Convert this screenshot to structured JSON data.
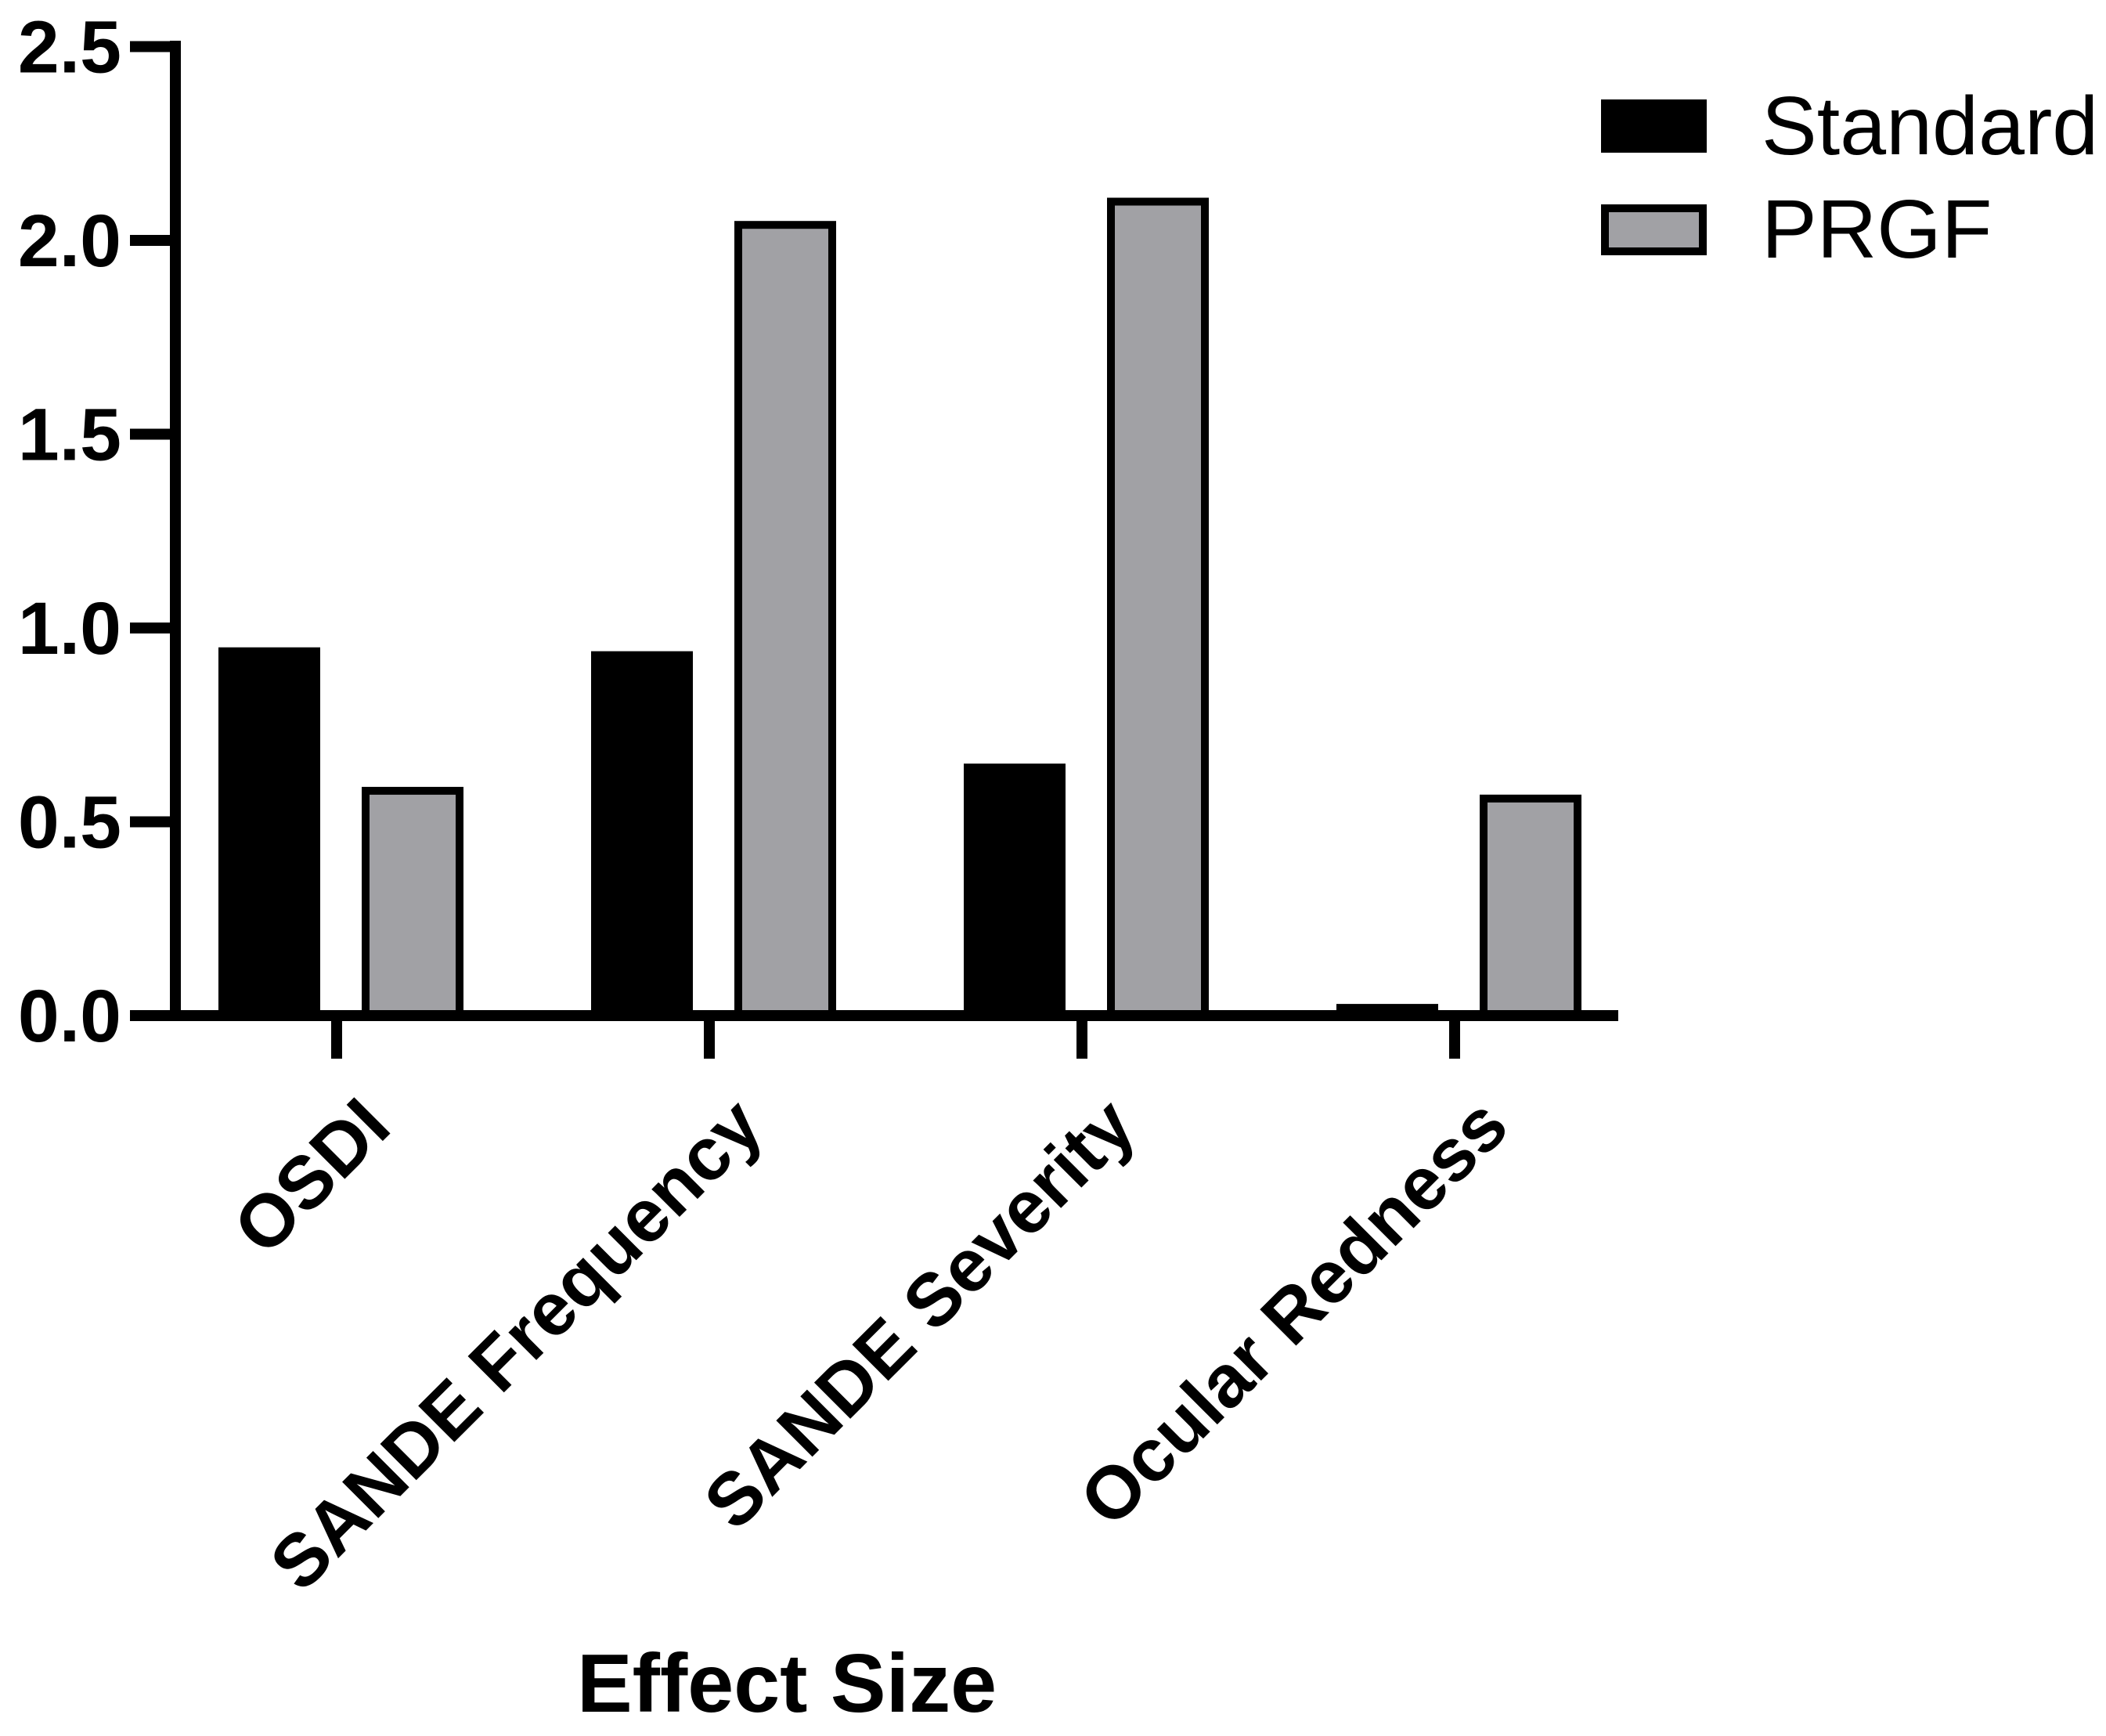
{
  "figure": {
    "background_color": "#FFFFFF",
    "axis_color": "#000000"
  },
  "chart_data": {
    "type": "bar",
    "title": "",
    "xlabel": "Effect Size",
    "ylabel": "",
    "categories": [
      "OSDI",
      "SANDE Frequency",
      "SANDE Severity",
      "Ocular Redness"
    ],
    "series": [
      {
        "name": "Standard",
        "color": "#000000",
        "values": [
          0.94,
          0.93,
          0.64,
          0.02
        ]
      },
      {
        "name": "PRGF",
        "color": "#A1A1A5",
        "values": [
          0.58,
          2.04,
          2.1,
          0.56
        ]
      }
    ],
    "bar_outline_color": "#000000",
    "ylim": [
      0,
      2.5
    ],
    "yticks": [
      0.0,
      0.5,
      1.0,
      1.5,
      2.0,
      2.5
    ],
    "ytick_labels": [
      "0.0",
      "0.5",
      "1.0",
      "1.5",
      "2.0",
      "2.5"
    ],
    "grid": false,
    "legend_position": "top-right",
    "x_labels_rotation_deg": -45
  }
}
